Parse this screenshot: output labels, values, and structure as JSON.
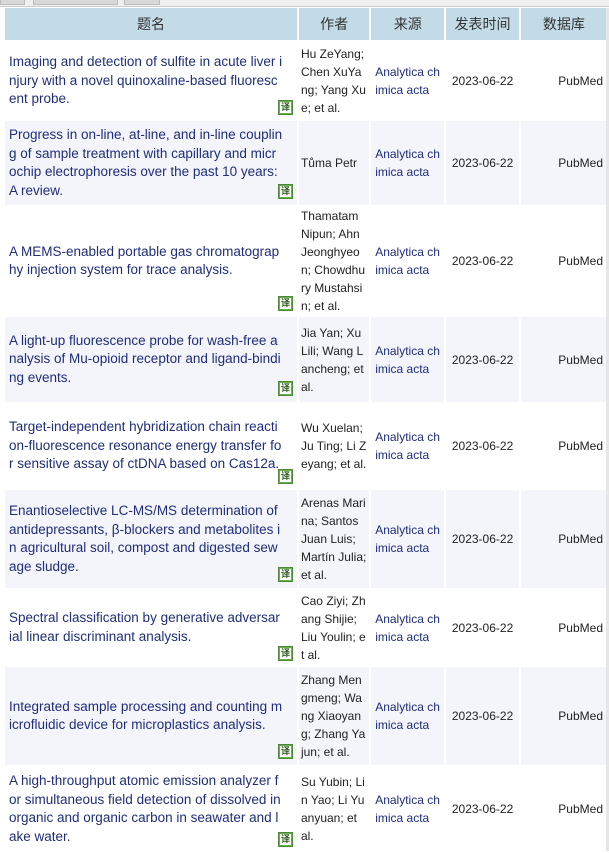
{
  "headers": {
    "title": "题名",
    "author": "作者",
    "source": "来源",
    "date": "发表时间",
    "db": "数据库"
  },
  "translate_icon": "译",
  "rows": [
    {
      "title": [
        "Imaging and detection of sulfite in acute liver i",
        "njury with a novel quinoxaline-based fluoresc",
        "ent probe."
      ],
      "author": [
        "Hu ZeYang;",
        "Chen XuYa",
        "ng; Yang Xu",
        "e; et al."
      ],
      "source": [
        "Analytica ch",
        "imica acta"
      ],
      "date": "2023-06-22",
      "db": "PubMed",
      "h": 80
    },
    {
      "title": [
        "Progress in on-line, at-line, and in-line couplin",
        "g of sample treatment with capillary and micr",
        "ochip electrophoresis over the past 10 years:",
        "A review."
      ],
      "author": [
        "Tůma Petr"
      ],
      "source": [
        "Analytica ch",
        "imica acta"
      ],
      "date": "2023-06-22",
      "db": "PubMed",
      "h": 84
    },
    {
      "title": [
        "A MEMS-enabled portable gas chromatograp",
        "hy injection system for trace analysis."
      ],
      "author": [
        "Thamatam",
        "Nipun; Ahn",
        "Jeonghyeo",
        "n; Chowdhu",
        "ry Mustahsi",
        "n; et al."
      ],
      "source": [
        "Analytica ch",
        "imica acta"
      ],
      "date": "2023-06-22",
      "db": "PubMed",
      "h": 109
    },
    {
      "title": [
        "A light-up fluorescence probe for wash-free a",
        "nalysis of Mu-opioid receptor and ligand-bindi",
        "ng events."
      ],
      "author": [
        "Jia Yan; Xu",
        "Lili; Wang L",
        "ancheng; et",
        "al."
      ],
      "source": [
        "Analytica ch",
        "imica acta"
      ],
      "date": "2023-06-22",
      "db": "PubMed",
      "h": 85
    },
    {
      "title": [
        "Target-independent hybridization chain reacti",
        "on-fluorescence resonance energy transfer fo",
        "r sensitive assay of ctDNA based on Cas12a."
      ],
      "author": [
        "Wu Xuelan;",
        "Ju Ting; Li Z",
        "eyang; et al."
      ],
      "source": [
        "Analytica ch",
        "imica acta"
      ],
      "date": "2023-06-22",
      "db": "PubMed",
      "h": 88
    },
    {
      "title": [
        "Enantioselective LC-MS/MS determination of",
        "antidepressants, β-blockers and metabolites i",
        "n agricultural soil, compost and digested sew",
        "age sludge."
      ],
      "author": [
        "Arenas Mari",
        "na; Santos",
        "Juan Luis;",
        "Martín Julia;",
        "et al."
      ],
      "source": [
        "Analytica ch",
        "imica acta"
      ],
      "date": "2023-06-22",
      "db": "PubMed",
      "h": 98
    },
    {
      "title": [
        "Spectral classification by generative adversar",
        "ial linear discriminant analysis."
      ],
      "author": [
        "Cao Ziyi; Zh",
        "ang Shijie;",
        "Liu Youlin; e",
        "t al."
      ],
      "source": [
        "Analytica ch",
        "imica acta"
      ],
      "date": "2023-06-22",
      "db": "PubMed",
      "h": 79
    },
    {
      "title": [
        "Integrated sample processing and counting m",
        "icrofluidic device for microplastics analysis."
      ],
      "author": [
        "Zhang Men",
        "gmeng; Wa",
        "ng Xiaoyan",
        "g; Zhang Ya",
        "jun; et al."
      ],
      "source": [
        "Analytica ch",
        "imica acta"
      ],
      "date": "2023-06-22",
      "db": "PubMed",
      "h": 98
    },
    {
      "title": [
        "A high-throughput atomic emission analyzer f",
        "or simultaneous field detection of dissolved in",
        "organic and organic carbon in seawater and l",
        "ake water."
      ],
      "author": [
        "Su Yubin; Li",
        "n Yao; Li Yu",
        "anyuan; et",
        "al."
      ],
      "source": [
        "Analytica ch",
        "imica acta"
      ],
      "date": "2023-06-22",
      "db": "PubMed",
      "h": 88
    }
  ]
}
